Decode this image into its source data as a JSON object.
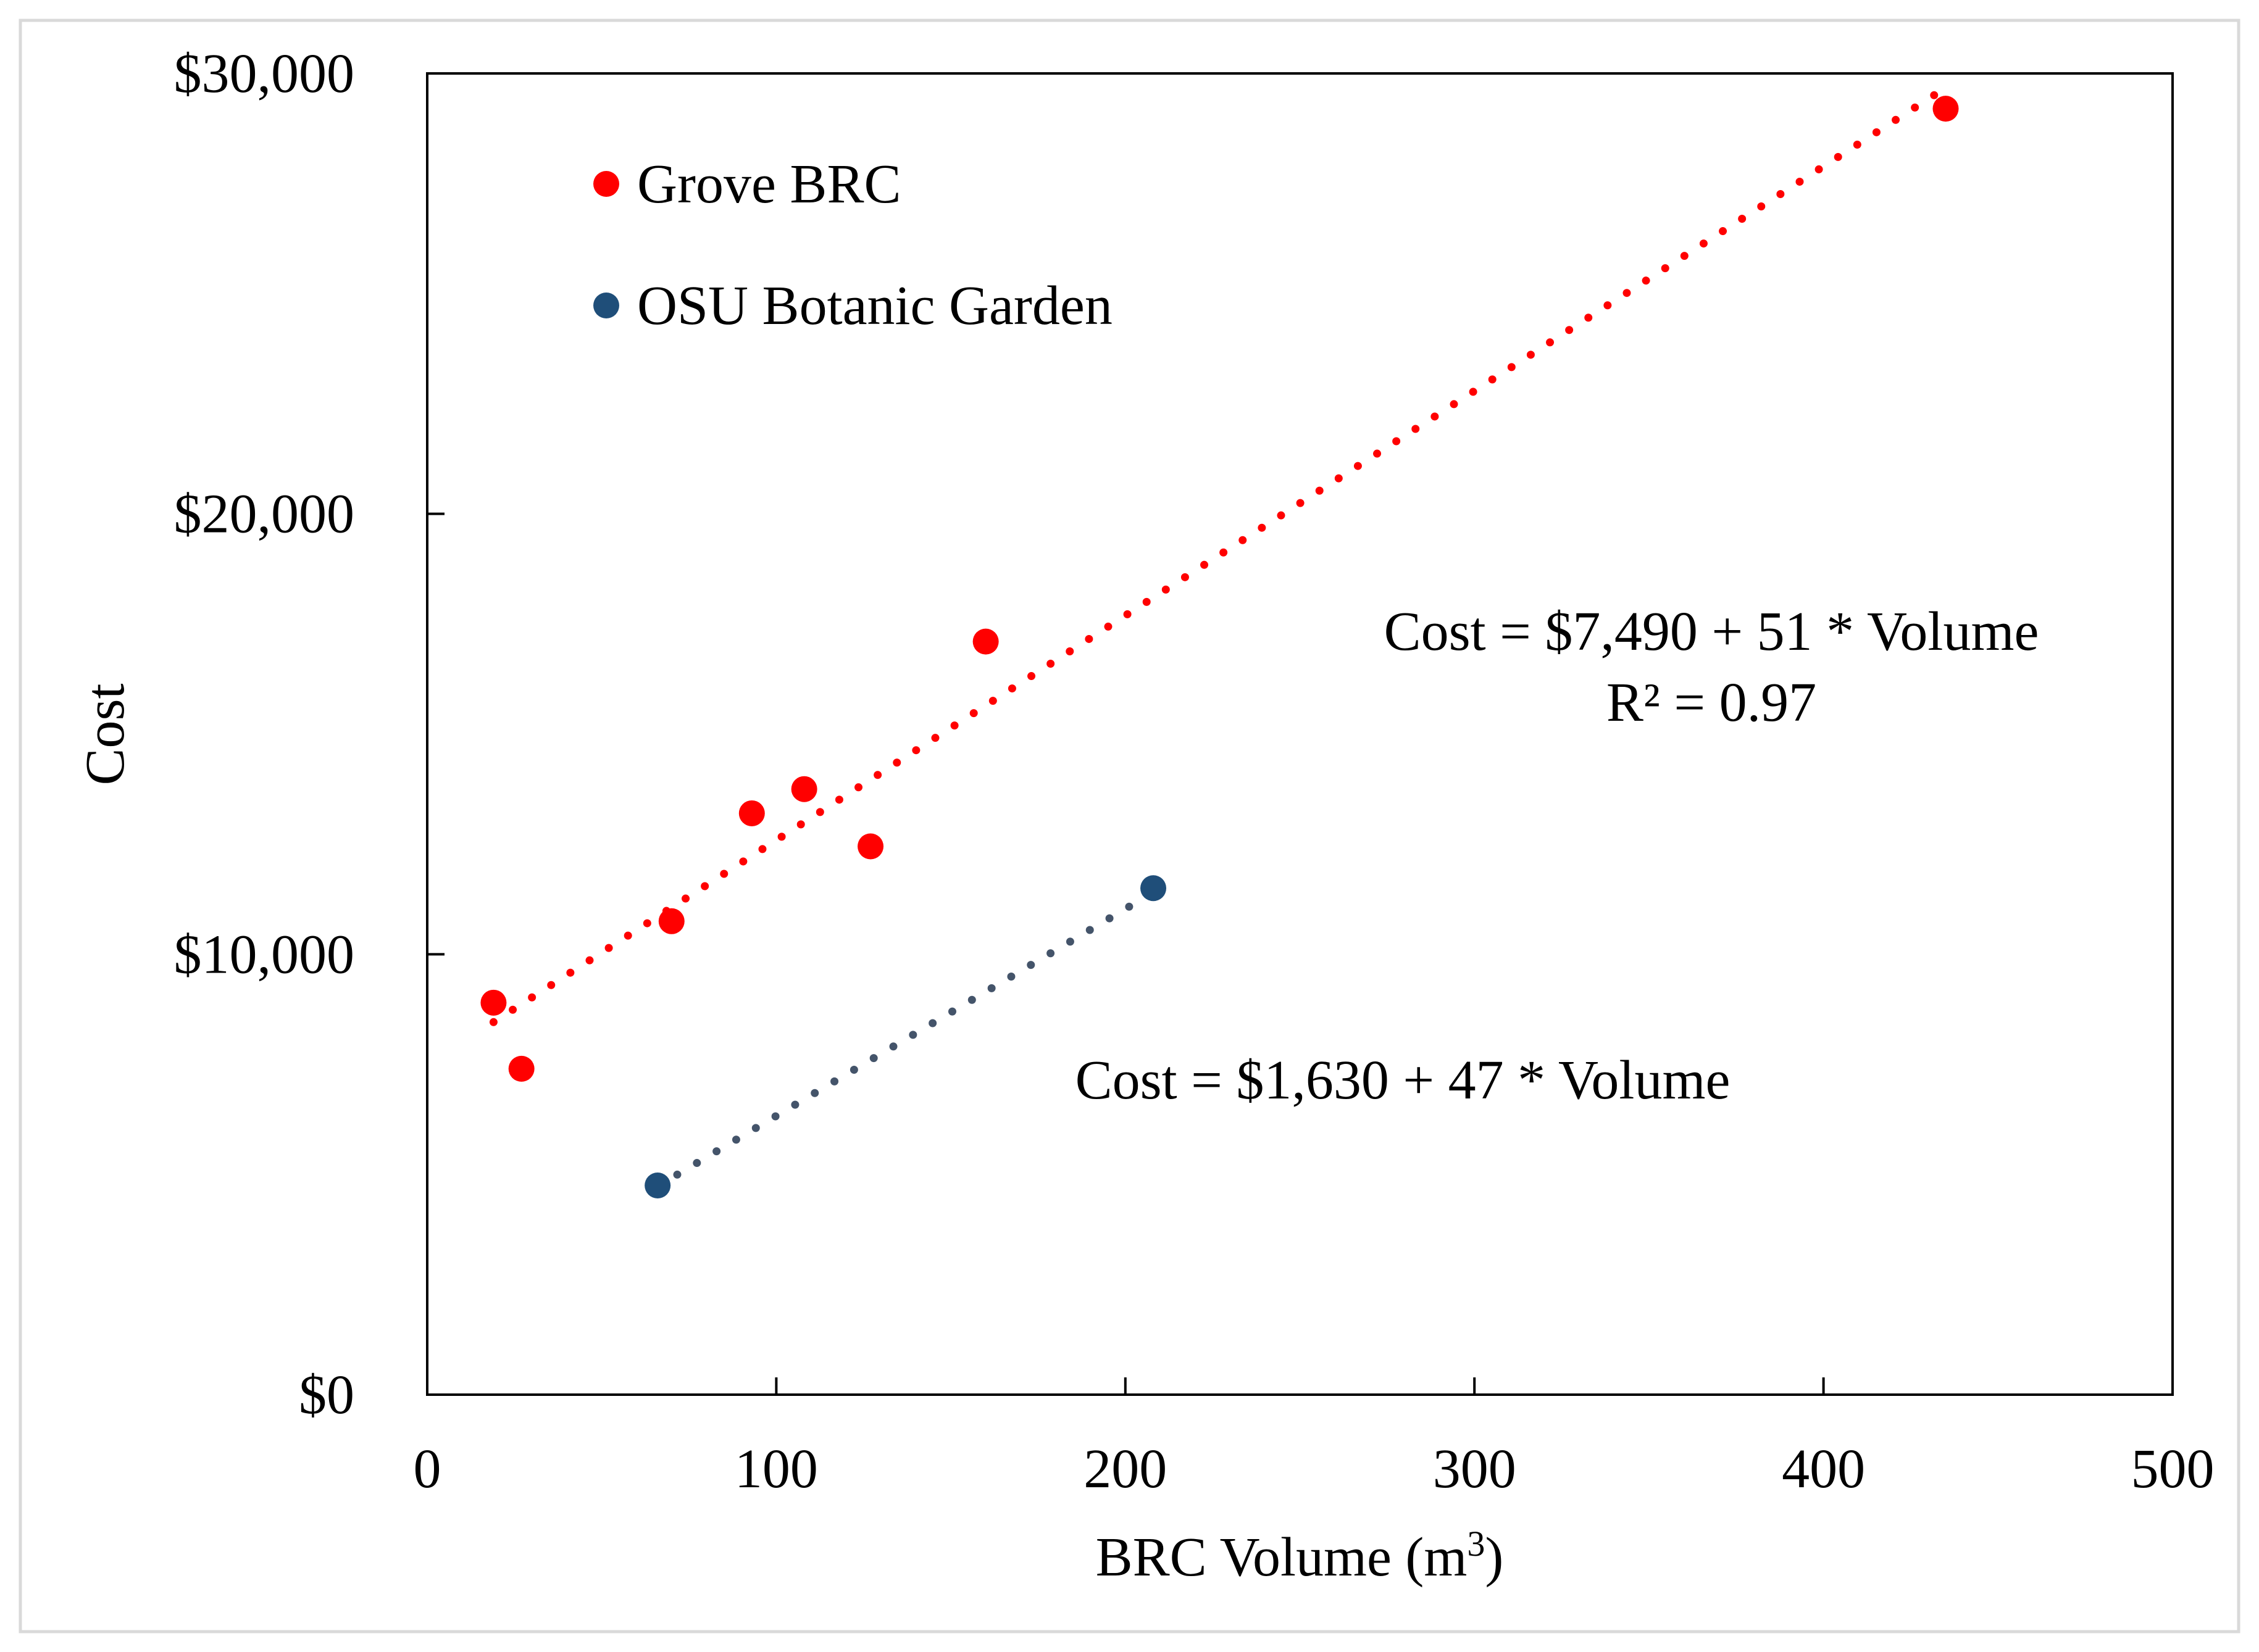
{
  "chart_data": {
    "type": "scatter",
    "xlabel": "BRC Volume (m",
    "xlabel_superscript": "3",
    "xlabel_suffix": ")",
    "ylabel": "Cost",
    "xlim": [
      0,
      500
    ],
    "ylim": [
      0,
      30000
    ],
    "x_ticks": [
      {
        "value": 0,
        "label": "0"
      },
      {
        "value": 100,
        "label": "100"
      },
      {
        "value": 200,
        "label": "200"
      },
      {
        "value": 300,
        "label": "300"
      },
      {
        "value": 400,
        "label": "400"
      },
      {
        "value": 500,
        "label": "500"
      }
    ],
    "y_ticks": [
      {
        "value": 0,
        "label": "$0"
      },
      {
        "value": 10000,
        "label": "$10,000"
      },
      {
        "value": 20000,
        "label": "$20,000"
      },
      {
        "value": 30000,
        "label": "$30,000"
      }
    ],
    "grid": false,
    "legend_position": "top-left",
    "series": [
      {
        "name": "Grove BRC",
        "color": "#ff0000",
        "points": [
          {
            "x": 19,
            "y": 8900
          },
          {
            "x": 27,
            "y": 7400
          },
          {
            "x": 70,
            "y": 10750
          },
          {
            "x": 93,
            "y": 13200
          },
          {
            "x": 108,
            "y": 13750
          },
          {
            "x": 127,
            "y": 12450
          },
          {
            "x": 160,
            "y": 17100
          },
          {
            "x": 435,
            "y": 29200
          }
        ],
        "trendline": {
          "x": [
            19,
            435
          ],
          "intercept": 7490,
          "slope": 51,
          "style": "dotted",
          "color": "#ff0000"
        }
      },
      {
        "name": "OSU Botanic Garden",
        "color": "#1f4e79",
        "points": [
          {
            "x": 66,
            "y": 4750
          },
          {
            "x": 208,
            "y": 11500
          }
        ],
        "trendline": {
          "x": [
            66,
            208
          ],
          "intercept": 1630,
          "slope": 47,
          "style": "dotted",
          "color": "#44546a"
        }
      }
    ],
    "annotations": [
      {
        "text": "Cost = $7,490 + 51 * Volume",
        "series": "Grove BRC"
      },
      {
        "text": "R² = 0.97",
        "series": "Grove BRC"
      },
      {
        "text": "Cost = $1,630 + 47 * Volume",
        "series": "OSU Botanic Garden"
      }
    ]
  }
}
